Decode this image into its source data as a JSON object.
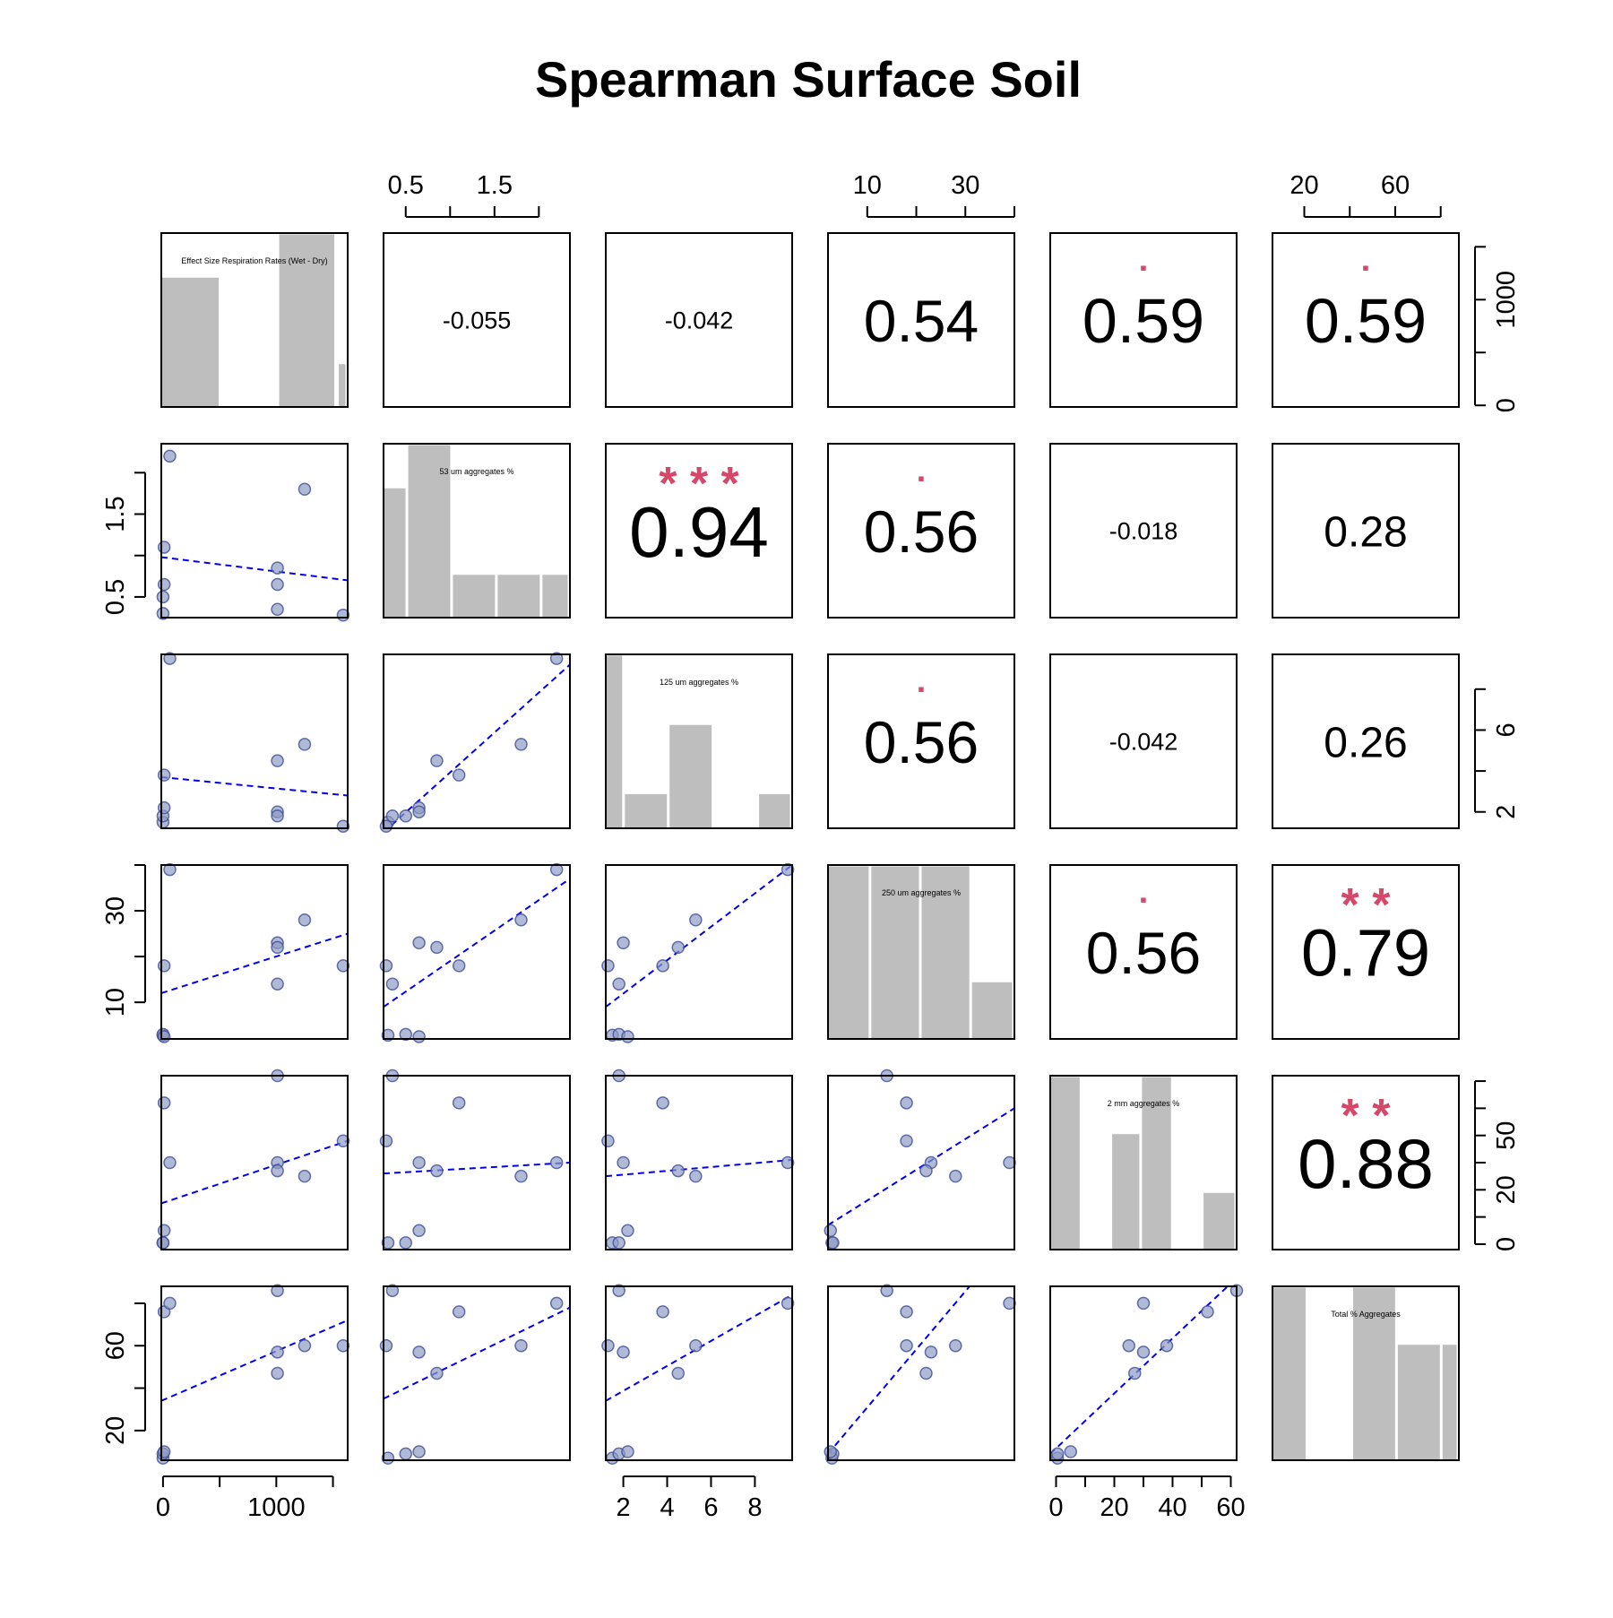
{
  "title": "Spearman Surface Soil",
  "colors": {
    "point_fill": "#8f9bc4",
    "point_stroke": "#3e4f96",
    "fit_line": "#0000ee",
    "hist_bar": "#bebebe",
    "significance": "#d6486a",
    "text": "#000000"
  },
  "chart_data": {
    "type": "scatter",
    "variables": [
      "Effect Size Respiration Rates (Wet - Dry)",
      "53 um aggregates %",
      "125 um aggregates %",
      "250 um aggregates %",
      "2 mm aggregates %",
      "Total % Aggregates"
    ],
    "ranges": [
      [
        -15,
        1630
      ],
      [
        0.25,
        2.35
      ],
      [
        1.2,
        9.7
      ],
      [
        2,
        40
      ],
      [
        -2,
        62
      ],
      [
        6,
        88
      ]
    ],
    "ticks": [
      {
        "values": [
          0,
          500,
          1000,
          1500
        ],
        "labels": [
          "0",
          "",
          "1000",
          ""
        ]
      },
      {
        "values": [
          0.5,
          1.0,
          1.5,
          2.0
        ],
        "labels": [
          "0.5",
          "",
          "1.5",
          ""
        ]
      },
      {
        "values": [
          2,
          4,
          6,
          8
        ],
        "labels": [
          "2",
          "",
          "6",
          ""
        ]
      },
      {
        "values": [
          10,
          20,
          30,
          40
        ],
        "labels": [
          "10",
          "",
          "30",
          ""
        ]
      },
      {
        "values": [
          0,
          10,
          20,
          30,
          40,
          50,
          60
        ],
        "labels": [
          "0",
          "",
          "20",
          "",
          "50",
          "",
          ""
        ]
      },
      {
        "values": [
          20,
          40,
          60,
          80
        ],
        "labels": [
          "20",
          "",
          "60",
          ""
        ]
      }
    ],
    "bottom_ticks": [
      {
        "values": [
          0,
          500,
          1000,
          1500
        ],
        "labels": [
          "0",
          "",
          "1000",
          ""
        ]
      },
      {
        "values": [
          2,
          4,
          6,
          8
        ],
        "labels": [
          "2",
          "4",
          "6",
          "8"
        ]
      },
      {
        "values": [
          0,
          10,
          20,
          30,
          40,
          50,
          60
        ],
        "labels": [
          "0",
          "",
          "20",
          "",
          "40",
          "",
          "60"
        ]
      }
    ],
    "observations": [
      [
        0,
        0.3,
        1.5,
        2.8,
        0.5,
        7
      ],
      [
        0,
        0.5,
        1.8,
        3.0,
        0.5,
        9
      ],
      [
        10,
        0.65,
        2.2,
        2.5,
        5,
        10
      ],
      [
        10,
        1.1,
        3.8,
        18,
        52,
        76
      ],
      [
        60,
        2.2,
        9.5,
        39,
        30,
        80
      ],
      [
        1010,
        0.65,
        2.0,
        23,
        30,
        57
      ],
      [
        1010,
        0.85,
        4.5,
        22,
        27,
        47
      ],
      [
        1010,
        0.35,
        1.8,
        14,
        62,
        86
      ],
      [
        1250,
        1.8,
        5.3,
        28,
        25,
        60
      ],
      [
        1590,
        0.28,
        1.3,
        18,
        38,
        60
      ]
    ],
    "correlations": [
      {
        "row": 0,
        "col": 1,
        "value": "-0.055",
        "stars": "",
        "size": 27
      },
      {
        "row": 0,
        "col": 2,
        "value": "-0.042",
        "stars": "",
        "size": 27
      },
      {
        "row": 0,
        "col": 3,
        "value": "0.54",
        "stars": "",
        "size": 66
      },
      {
        "row": 0,
        "col": 4,
        "value": "0.59",
        "stars": ".",
        "size": 70
      },
      {
        "row": 0,
        "col": 5,
        "value": "0.59",
        "stars": ".",
        "size": 70
      },
      {
        "row": 1,
        "col": 2,
        "value": "0.94",
        "stars": "***",
        "size": 80
      },
      {
        "row": 1,
        "col": 3,
        "value": "0.56",
        "stars": ".",
        "size": 66
      },
      {
        "row": 1,
        "col": 4,
        "value": "-0.018",
        "stars": "",
        "size": 27
      },
      {
        "row": 1,
        "col": 5,
        "value": "0.28",
        "stars": "",
        "size": 48
      },
      {
        "row": 2,
        "col": 3,
        "value": "0.56",
        "stars": ".",
        "size": 66
      },
      {
        "row": 2,
        "col": 4,
        "value": "-0.042",
        "stars": "",
        "size": 27
      },
      {
        "row": 2,
        "col": 5,
        "value": "0.26",
        "stars": "",
        "size": 48
      },
      {
        "row": 3,
        "col": 4,
        "value": "0.56",
        "stars": ".",
        "size": 66
      },
      {
        "row": 3,
        "col": 5,
        "value": "0.79",
        "stars": "**",
        "size": 74
      },
      {
        "row": 4,
        "col": 5,
        "value": "0.88",
        "stars": "**",
        "size": 78
      }
    ],
    "fit_lines": [
      {
        "row": 1,
        "col": 0,
        "y_start": 0.98,
        "y_end": 0.7
      },
      {
        "row": 2,
        "col": 0,
        "y_start": 3.7,
        "y_end": 2.8
      },
      {
        "row": 2,
        "col": 1,
        "y_start": 1.0,
        "y_end": 9.2
      },
      {
        "row": 3,
        "col": 0,
        "y_start": 12,
        "y_end": 25
      },
      {
        "row": 3,
        "col": 1,
        "y_start": 9,
        "y_end": 37
      },
      {
        "row": 3,
        "col": 2,
        "y_start": 9,
        "y_end": 40
      },
      {
        "row": 4,
        "col": 0,
        "y_start": 15,
        "y_end": 38
      },
      {
        "row": 4,
        "col": 1,
        "y_start": 26,
        "y_end": 30
      },
      {
        "row": 4,
        "col": 2,
        "y_start": 25,
        "y_end": 31
      },
      {
        "row": 4,
        "col": 3,
        "y_start": 7,
        "y_end": 50
      },
      {
        "row": 5,
        "col": 0,
        "y_start": 34,
        "y_end": 72
      },
      {
        "row": 5,
        "col": 1,
        "y_start": 35,
        "y_end": 78
      },
      {
        "row": 5,
        "col": 2,
        "y_start": 34,
        "y_end": 84
      },
      {
        "row": 5,
        "col": 3,
        "y_start": 9,
        "y_end": 113
      },
      {
        "row": 5,
        "col": 4,
        "y_start": 9,
        "y_end": 92
      }
    ],
    "histograms": [
      [
        {
          "from": 0.0,
          "to": 0.32,
          "h": 0.75
        },
        {
          "from": 0.63,
          "to": 0.94,
          "h": 1.0
        },
        {
          "from": 0.95,
          "to": 1.0,
          "h": 0.25
        }
      ],
      [
        {
          "from": 0.0,
          "to": 0.13,
          "h": 0.75
        },
        {
          "from": 0.13,
          "to": 0.37,
          "h": 1.0
        },
        {
          "from": 0.37,
          "to": 0.61,
          "h": 0.25
        },
        {
          "from": 0.61,
          "to": 0.85,
          "h": 0.25
        },
        {
          "from": 0.85,
          "to": 1.0,
          "h": 0.25
        }
      ],
      [
        {
          "from": 0.0,
          "to": 0.1,
          "h": 1.0
        },
        {
          "from": 0.1,
          "to": 0.34,
          "h": 0.2
        },
        {
          "from": 0.34,
          "to": 0.58,
          "h": 0.6
        },
        {
          "from": 0.82,
          "to": 1.0,
          "h": 0.2
        }
      ],
      [
        {
          "from": 0.0,
          "to": 0.23,
          "h": 1.0
        },
        {
          "from": 0.23,
          "to": 0.5,
          "h": 1.0
        },
        {
          "from": 0.5,
          "to": 0.77,
          "h": 1.0
        },
        {
          "from": 0.77,
          "to": 1.0,
          "h": 0.33
        }
      ],
      [
        {
          "from": 0.0,
          "to": 0.17,
          "h": 1.0
        },
        {
          "from": 0.33,
          "to": 0.49,
          "h": 0.67
        },
        {
          "from": 0.49,
          "to": 0.66,
          "h": 1.0
        },
        {
          "from": 0.82,
          "to": 1.0,
          "h": 0.33
        }
      ],
      [
        {
          "from": 0.0,
          "to": 0.19,
          "h": 1.0
        },
        {
          "from": 0.43,
          "to": 0.67,
          "h": 1.0
        },
        {
          "from": 0.67,
          "to": 0.91,
          "h": 0.67
        },
        {
          "from": 0.91,
          "to": 1.0,
          "h": 0.67
        }
      ]
    ],
    "grid": false
  }
}
